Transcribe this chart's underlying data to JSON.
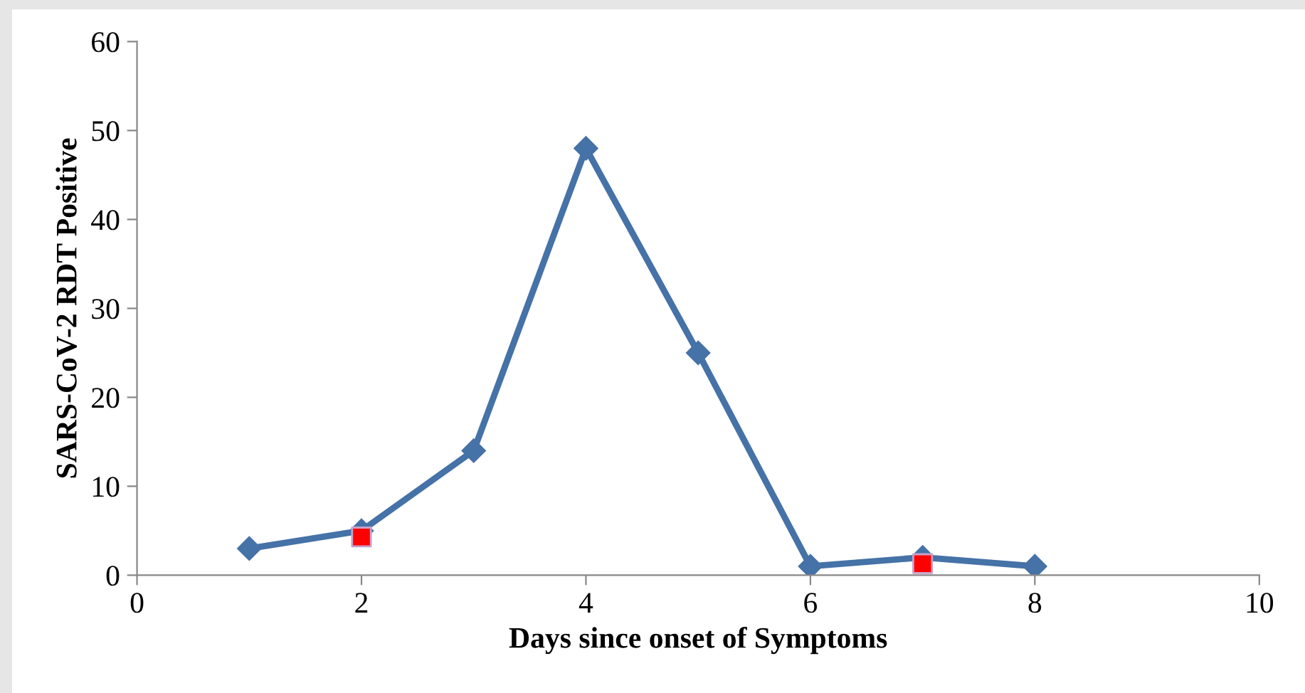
{
  "chart_data": {
    "type": "line",
    "xlabel": "Days since onset of Symptoms",
    "ylabel": "SARS-CoV-2 RDT Positive",
    "x": [
      1,
      2,
      3,
      4,
      5,
      6,
      7,
      8
    ],
    "series": [
      {
        "color": "#4572a7",
        "marker": "diamond",
        "values": [
          3,
          5,
          14,
          48,
          25,
          1,
          2,
          1
        ]
      },
      {
        "type": "scatter",
        "color": "#ff0000",
        "marker": "square",
        "x": [
          2,
          7
        ],
        "values": [
          4.3,
          1.3
        ]
      }
    ],
    "xlim": [
      0,
      10
    ],
    "xticks": [
      0,
      2,
      4,
      6,
      8,
      10
    ],
    "ylim": [
      0,
      60
    ],
    "yticks": [
      0,
      10,
      20,
      30,
      40,
      50,
      60
    ],
    "grid": false
  }
}
